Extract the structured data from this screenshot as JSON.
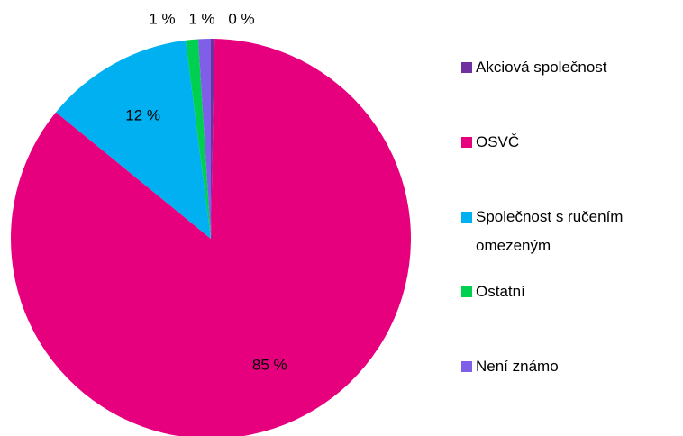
{
  "chart_data": {
    "type": "pie",
    "categories": [
      "Akciová společnost",
      "OSVČ",
      "Společnost s ručením omezeným",
      "Ostatní",
      "Není známo"
    ],
    "values": [
      0.3,
      85,
      12,
      1,
      1
    ],
    "value_labels": [
      "0 %",
      "85 %",
      "12 %",
      "1 %",
      "1 %"
    ],
    "colors": [
      "#7030a0",
      "#e6007e",
      "#00b0f0",
      "#00d050",
      "#7f5fe8"
    ],
    "legend": "right"
  }
}
